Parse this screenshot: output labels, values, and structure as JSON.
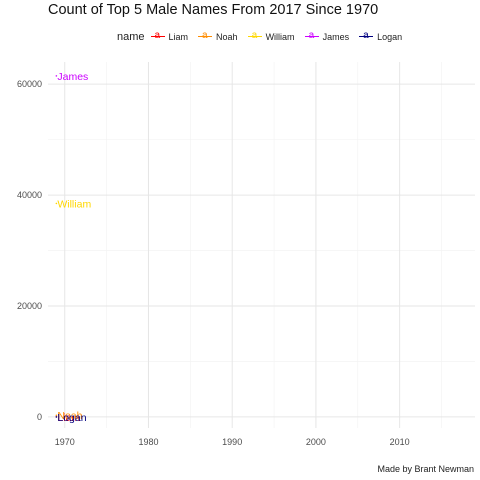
{
  "chart_data": {
    "type": "line",
    "title": "Count of Top 5 Male Names From 2017 Since 1970",
    "caption": "Made by Brant Newman",
    "legend_title": "name",
    "legend_position": "top",
    "legend_key_glyph": "a",
    "xlim": [
      1968,
      2019
    ],
    "ylim": [
      -2000,
      64000
    ],
    "x_ticks": [
      1970,
      1980,
      1990,
      2000,
      2010
    ],
    "x_tick_labels": [
      "1970",
      "1980",
      "1990",
      "2000",
      "2010"
    ],
    "y_ticks": [
      0,
      20000,
      40000,
      60000
    ],
    "y_tick_labels": [
      "0",
      "20000",
      "40000",
      "60000"
    ],
    "grid": true,
    "series": [
      {
        "name": "Liam",
        "color": "#ff0000",
        "points": [
          {
            "x": 1969,
            "y": 0
          }
        ]
      },
      {
        "name": "Noah",
        "color": "#ff8c00",
        "points": [
          {
            "x": 1969,
            "y": 300
          }
        ]
      },
      {
        "name": "William",
        "color": "#ffd700",
        "points": [
          {
            "x": 1969,
            "y": 38500
          }
        ]
      },
      {
        "name": "James",
        "color": "#cc00ff",
        "points": [
          {
            "x": 1969,
            "y": 61500
          }
        ]
      },
      {
        "name": "Logan",
        "color": "#000080",
        "points": [
          {
            "x": 1969,
            "y": 0
          }
        ]
      }
    ]
  }
}
